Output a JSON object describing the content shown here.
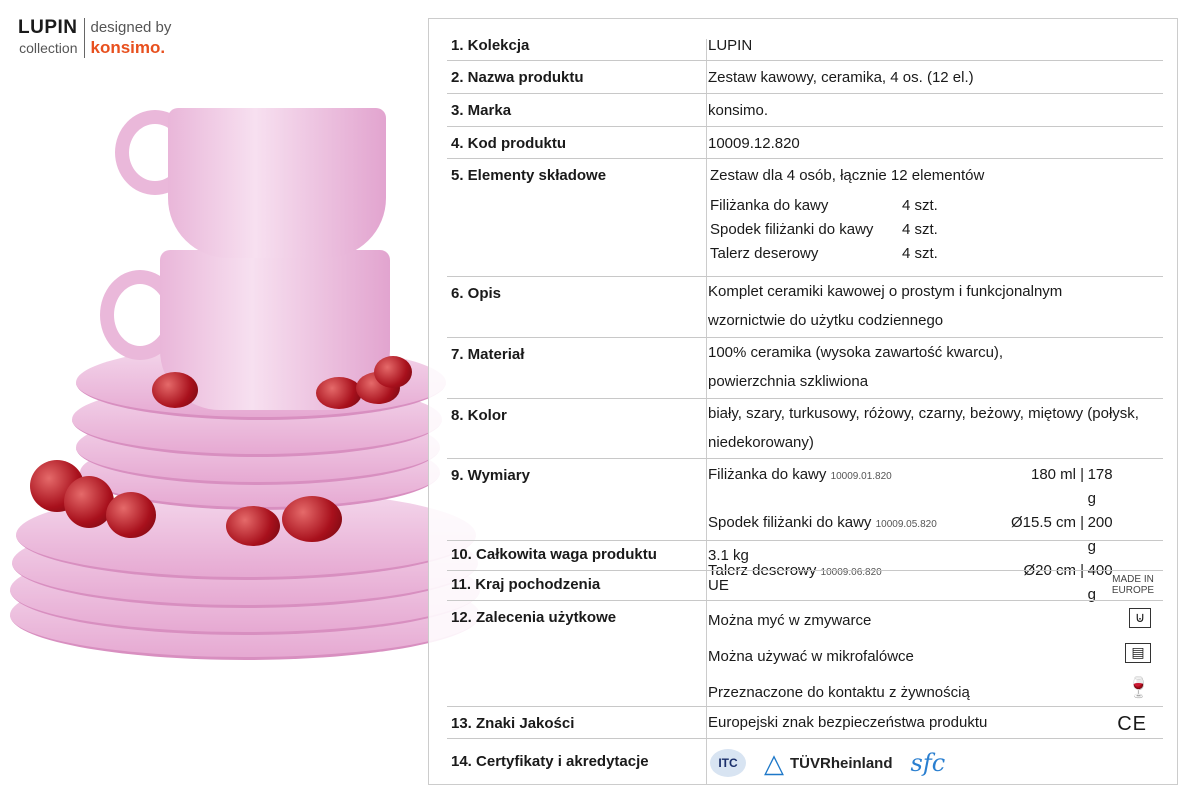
{
  "logo": {
    "brand": "LUPIN",
    "collection": "collection",
    "designed": "designed by",
    "maker": "konsimo."
  },
  "rows": [
    {
      "label": "1. Kolekcja",
      "value": "LUPIN"
    },
    {
      "label": "2. Nazwa produktu",
      "value": "Zestaw kawowy, ceramika, 4 os. (12 el.)"
    },
    {
      "label": "3. Marka",
      "value": "konsimo."
    },
    {
      "label": "4. Kod produktu",
      "value": "10009.12.820"
    },
    {
      "label": "5. Elementy składowe",
      "value": "Zestaw dla 4 osób, łącznie 12 elementów",
      "items": [
        {
          "name": "Filiżanka do kawy",
          "qty": "4 szt."
        },
        {
          "name": "Spodek filiżanki do kawy",
          "qty": "4 szt."
        },
        {
          "name": "Talerz deserowy",
          "qty": "4 szt."
        }
      ]
    },
    {
      "label": "6. Opis",
      "value": "Komplet ceramiki kawowej o prostym i funkcjonalnym wzornictwie do użytku codziennego"
    },
    {
      "label": "7. Materiał",
      "value": "100% ceramika (wysoka zawartość kwarcu), powierzchnia szkliwiona"
    },
    {
      "label": "8. Kolor",
      "value": "biały, szary, turkusowy, różowy, czarny, beżowy, miętowy (połysk, niedekorowany)"
    },
    {
      "label": "9. Wymiary",
      "items": [
        {
          "name": "Filiżanka do kawy",
          "code": "10009.01.820",
          "size": "180 ml",
          "weight": "178 g"
        },
        {
          "name": "Spodek filiżanki do kawy",
          "code": "10009.05.820",
          "size": "Ø15.5 cm",
          "weight": "200 g"
        },
        {
          "name": "Talerz deserowy",
          "code": "10009.06.820",
          "size": "Ø20 cm",
          "weight": "400 g"
        }
      ]
    },
    {
      "label": "10. Całkowita waga produktu",
      "value": "3.1 kg"
    },
    {
      "label": "11. Kraj pochodzenia",
      "value": "UE",
      "badge": "MADE IN EUROPE"
    },
    {
      "label": "12. Zalecenia użytkowe",
      "items": [
        {
          "text": "Można myć w zmywarce",
          "icon": "dishwasher-icon"
        },
        {
          "text": "Można używać w mikrofalówce",
          "icon": "microwave-icon"
        },
        {
          "text": "Przeznaczone do kontaktu z żywnością",
          "icon": "food-safe-icon"
        }
      ]
    },
    {
      "label": "13. Znaki Jakości",
      "value": "Europejski znak bezpieczeństwa produktu",
      "mark": "CE"
    },
    {
      "label": "14. Certyfikaty i akredytacje",
      "certs": [
        "ITC",
        "TÜVRheinland",
        "sfc"
      ]
    }
  ]
}
